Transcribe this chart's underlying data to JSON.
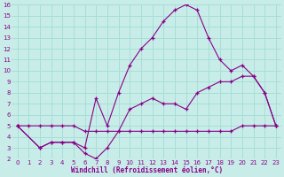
{
  "xlabel": "Windchill (Refroidissement éolien,°C)",
  "bg_color": "#c8ede8",
  "grid_color": "#a8ddd8",
  "line_color": "#880088",
  "xlim": [
    -0.5,
    23.5
  ],
  "ylim": [
    2,
    16
  ],
  "xticks": [
    0,
    1,
    2,
    3,
    4,
    5,
    6,
    7,
    8,
    9,
    10,
    11,
    12,
    13,
    14,
    15,
    16,
    17,
    18,
    19,
    20,
    21,
    22,
    23
  ],
  "yticks": [
    2,
    3,
    4,
    5,
    6,
    7,
    8,
    9,
    10,
    11,
    12,
    13,
    14,
    15,
    16
  ],
  "line1_x": [
    0,
    2,
    3,
    4,
    5,
    6,
    7,
    8,
    9,
    10,
    11,
    12,
    13,
    14,
    15,
    16,
    17,
    18,
    19,
    20,
    21,
    22,
    23
  ],
  "line1_y": [
    5,
    3,
    3.5,
    3.5,
    3.5,
    2.5,
    2.0,
    3.0,
    4.5,
    6.5,
    7.0,
    7.5,
    7.0,
    7.0,
    6.5,
    8.0,
    8.5,
    9.0,
    9.0,
    9.5,
    9.5,
    8.0,
    5.0
  ],
  "line2_x": [
    0,
    2,
    3,
    4,
    5,
    6,
    7,
    8,
    9,
    10,
    11,
    12,
    13,
    14,
    15,
    16,
    17,
    18,
    19,
    20,
    21,
    22,
    23
  ],
  "line2_y": [
    5,
    3,
    3.5,
    3.5,
    3.5,
    3.0,
    7.5,
    5.0,
    8.0,
    10.5,
    12.0,
    13.0,
    14.5,
    15.5,
    16.0,
    15.5,
    13.0,
    11.0,
    10.0,
    10.5,
    9.5,
    8.0,
    5.0
  ],
  "line3_x": [
    0,
    1,
    2,
    3,
    4,
    5,
    6,
    7,
    8,
    9,
    10,
    11,
    12,
    13,
    14,
    15,
    16,
    17,
    18,
    19,
    20,
    21,
    22,
    23
  ],
  "line3_y": [
    5,
    5,
    5,
    5,
    5,
    5,
    4.5,
    4.5,
    4.5,
    4.5,
    4.5,
    4.5,
    4.5,
    4.5,
    4.5,
    4.5,
    4.5,
    4.5,
    4.5,
    4.5,
    5.0,
    5.0,
    5.0,
    5.0
  ]
}
